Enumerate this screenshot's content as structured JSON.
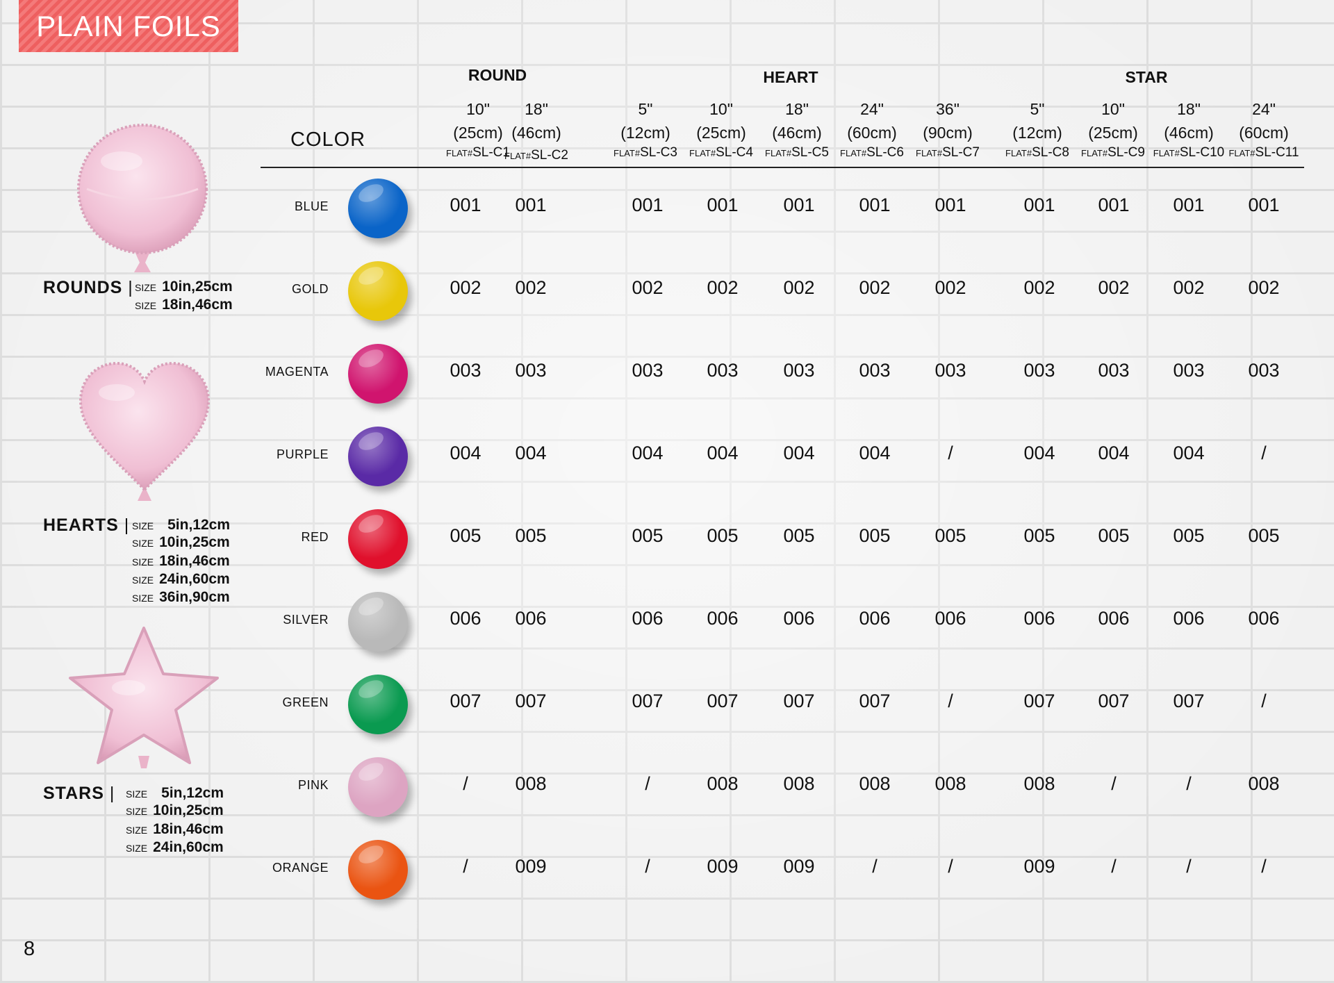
{
  "title": "PLAIN FOILS",
  "page_number": "8",
  "color_header": "COLOR",
  "groups": [
    "ROUND",
    "HEART",
    "STAR"
  ],
  "columns": [
    {
      "size": "10\"",
      "cm": "(25cm)",
      "prefix": "FLAT#",
      "code": "SL-C1"
    },
    {
      "size": "18\"",
      "cm": "(46cm)",
      "prefix": "FLAT#",
      "code": "SL-C2"
    },
    {
      "size": "5\"",
      "cm": "(12cm)",
      "prefix": "FLAT#",
      "code": "SL-C3"
    },
    {
      "size": "10\"",
      "cm": "(25cm)",
      "prefix": "FLAT#",
      "code": "SL-C4"
    },
    {
      "size": "18\"",
      "cm": "(46cm)",
      "prefix": "FLAT#",
      "code": "SL-C5"
    },
    {
      "size": "24\"",
      "cm": "(60cm)",
      "prefix": "FLAT#",
      "code": "SL-C6"
    },
    {
      "size": "36\"",
      "cm": "(90cm)",
      "prefix": "FLAT#",
      "code": "SL-C7"
    },
    {
      "size": "5\"",
      "cm": "(12cm)",
      "prefix": "FLAT#",
      "code": "SL-C8"
    },
    {
      "size": "10\"",
      "cm": "(25cm)",
      "prefix": "FLAT#",
      "code": "SL-C9"
    },
    {
      "size": "18\"",
      "cm": "(46cm)",
      "prefix": "FLAT#",
      "code": "SL-C10"
    },
    {
      "size": "24\"",
      "cm": "(60cm)",
      "prefix": "FLAT#",
      "code": "SL-C11"
    }
  ],
  "rows": [
    {
      "color": "BLUE",
      "swatch": "#0a64c8",
      "values": [
        "001",
        "001",
        "001",
        "001",
        "001",
        "001",
        "001",
        "001",
        "001",
        "001",
        "001"
      ]
    },
    {
      "color": "GOLD",
      "swatch": "#e8c70a",
      "values": [
        "002",
        "002",
        "002",
        "002",
        "002",
        "002",
        "002",
        "002",
        "002",
        "002",
        "002"
      ]
    },
    {
      "color": "MAGENTA",
      "swatch": "#d0146e",
      "values": [
        "003",
        "003",
        "003",
        "003",
        "003",
        "003",
        "003",
        "003",
        "003",
        "003",
        "003"
      ]
    },
    {
      "color": "PURPLE",
      "swatch": "#5a2aa6",
      "values": [
        "004",
        "004",
        "004",
        "004",
        "004",
        "004",
        "/",
        "004",
        "004",
        "004",
        "/"
      ]
    },
    {
      "color": "RED",
      "swatch": "#e0102c",
      "values": [
        "005",
        "005",
        "005",
        "005",
        "005",
        "005",
        "005",
        "005",
        "005",
        "005",
        "005"
      ]
    },
    {
      "color": "SILVER",
      "swatch": "#b9b9b9",
      "values": [
        "006",
        "006",
        "006",
        "006",
        "006",
        "006",
        "006",
        "006",
        "006",
        "006",
        "006"
      ]
    },
    {
      "color": "GREEN",
      "swatch": "#0a9a50",
      "values": [
        "007",
        "007",
        "007",
        "007",
        "007",
        "007",
        "/",
        "007",
        "007",
        "007",
        "/"
      ]
    },
    {
      "color": "PINK",
      "swatch": "#dda4c2",
      "values": [
        "/",
        "008",
        "/",
        "008",
        "008",
        "008",
        "008",
        "008",
        "/",
        "/",
        "008"
      ]
    },
    {
      "color": "ORANGE",
      "swatch": "#ea5412",
      "values": [
        "/",
        "009",
        "/",
        "009",
        "009",
        "/",
        "/",
        "009",
        "/",
        "/",
        "/"
      ]
    }
  ],
  "products": [
    {
      "name": "ROUNDS",
      "sep": "|",
      "size_word": "SIZE",
      "sizes": [
        "10in,25cm",
        "18in,46cm"
      ]
    },
    {
      "name": "HEARTS",
      "sep": "|",
      "size_word": "SIZE",
      "sizes": [
        "5in,12cm",
        "10in,25cm",
        "18in,46cm",
        "24in,60cm",
        "36in,90cm"
      ]
    },
    {
      "name": "STARS",
      "sep": "|",
      "size_word": "SIZE",
      "sizes": [
        "5in,12cm",
        "10in,25cm",
        "18in,46cm",
        "24in,60cm"
      ]
    }
  ],
  "balloon_color": "#f0c2d6"
}
